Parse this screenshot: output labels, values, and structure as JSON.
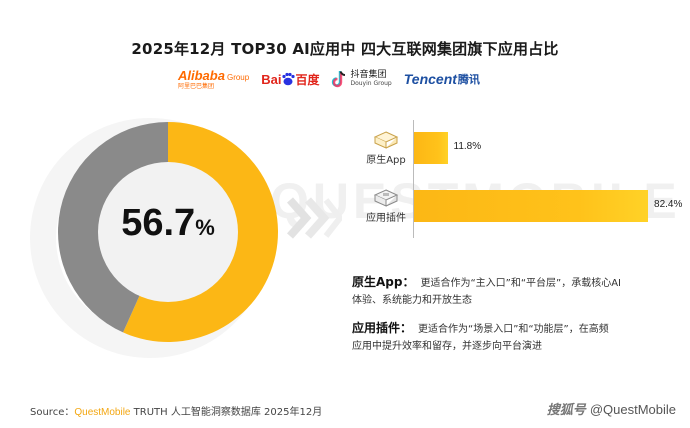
{
  "title": "2025年12月 TOP30 AI应用中 四大互联网集团旗下应用占比",
  "logos": {
    "alibaba": {
      "name": "Alibaba",
      "suffix": "Group",
      "cn": "阿里巴巴集团"
    },
    "baidu": {
      "part1": "Bai",
      "part2": "du",
      "cn": "百度"
    },
    "douyin": {
      "cn": "抖音集团",
      "en": "Douyin Group"
    },
    "tencent": {
      "en": "Tencent",
      "cn": "腾讯"
    }
  },
  "watermark": "QUESTMOBILE",
  "colors": {
    "accent": "#fcb715",
    "gray": "#8a8a8a",
    "inner": "#f2f2f2"
  },
  "icons": {
    "native_app": "app-box-icon",
    "plugin": "plugin-icon",
    "arrows": "chevron-right-icon"
  },
  "chart_data": [
    {
      "type": "pie",
      "center_label": {
        "value": "56.7",
        "unit": "%"
      },
      "slices": [
        {
          "value": 56.7,
          "color": "#fcb715"
        },
        {
          "value": 43.3,
          "color": "#8a8a8a"
        }
      ]
    },
    {
      "type": "bar",
      "orientation": "horizontal",
      "categories": [
        "原生App",
        "应用插件"
      ],
      "values": [
        11.8,
        82.4
      ],
      "value_labels": [
        "11.8%",
        "82.4%"
      ],
      "xlim": [
        0,
        100
      ]
    }
  ],
  "notes": [
    {
      "head": "原生App：",
      "line1": "更适合作为“主入口”和“平台层”，承载核心AI",
      "line2": "体验、系统能力和开放生态"
    },
    {
      "head": "应用插件：",
      "line1": "更适合作为“场景入口”和“功能层”，在高频",
      "line2": "应用中提升效率和留存，并逐步向平台演进"
    }
  ],
  "source": {
    "label": "Source：",
    "brand": "QuestMobile",
    "rest": " TRUTH 人工智能洞察数据库 2025年12月"
  },
  "credit": {
    "cn": "搜狐号",
    "handle": "@QuestMobile"
  }
}
